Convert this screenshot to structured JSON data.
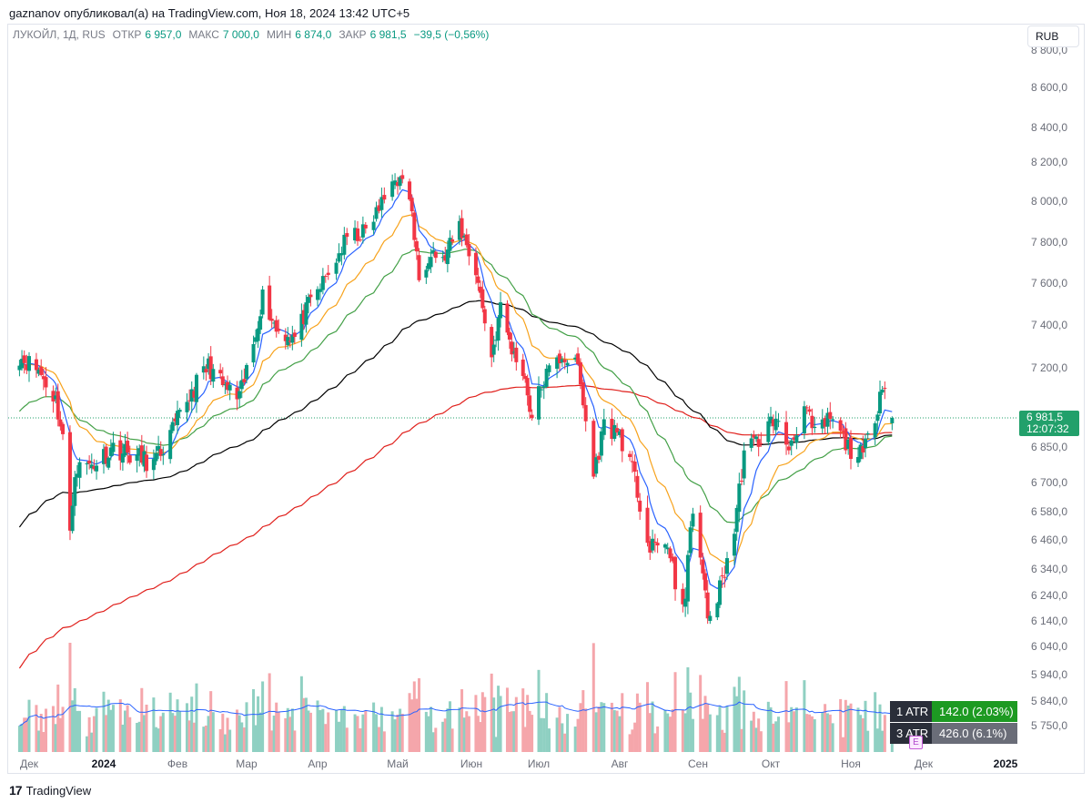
{
  "header": {
    "publish_line": "gaznanov опубликовал(а) на TradingView.com, Ноя 18, 2024 13:42 UTC+5"
  },
  "legend": {
    "symbol": "ЛУКОЙЛ, 1Д, RUS",
    "open_label": "ОТКР",
    "open_value": "6 957,0",
    "high_label": "МАКС",
    "high_value": "7 000,0",
    "low_label": "МИН",
    "low_value": "6 874,0",
    "close_label": "ЗАКР",
    "close_value": "6 981,5",
    "change": "−39,5 (−0,56%)"
  },
  "currency_button": "RUB",
  "price_tag": {
    "price": "6 981,5",
    "countdown": "12:07:32"
  },
  "atr": [
    {
      "label": "1 ATR",
      "value": "142.0 (2.03%)",
      "color": "#1d9a22"
    },
    {
      "label": "3 ATR",
      "value": "426.0 (6.1%)",
      "color": "#6a6d78"
    }
  ],
  "earnings_badge": "E",
  "footer": {
    "brand": "TradingView",
    "logo_glyph": "17"
  },
  "colors": {
    "up": "#089981",
    "down": "#f23645",
    "up_volume": "#8fd0c2",
    "down_volume": "#f5a6ab",
    "ma_blue": "#2962ff",
    "ma_orange": "#f7a21b",
    "ma_green": "#43a047",
    "ma_black": "#000000",
    "ma_red": "#e0201c",
    "volume_ma": "#2962ff"
  },
  "chart_data": {
    "type": "candlestick",
    "symbol": "ЛУКОЙЛ",
    "interval": "1Д",
    "currency": "RUB",
    "y_ticks": [
      8800,
      8600,
      8400,
      8200,
      8000,
      7800,
      7600,
      7400,
      7200,
      6850,
      6700,
      6580,
      6460,
      6340,
      6240,
      6140,
      6040,
      5940,
      5840,
      5750
    ],
    "y_tick_labels": [
      "8 800,0",
      "8 600,0",
      "8 400,0",
      "8 200,0",
      "8 000,0",
      "7 800,0",
      "7 600,0",
      "7 400,0",
      "7 200,0",
      "6 850,0",
      "6 700,0",
      "6 580,0",
      "6 460,0",
      "6 340,0",
      "6 240,0",
      "6 140,0",
      "6 040,0",
      "5 940,0",
      "5 840,0",
      "5 750,0"
    ],
    "x_labels": [
      "Дек",
      "2024",
      "Фев",
      "Мар",
      "Апр",
      "Май",
      "Июн",
      "Июл",
      "Авг",
      "Сен",
      "Окт",
      "Ноя",
      "Дек",
      "2025"
    ],
    "x_label_bold": [
      "2024",
      "2025"
    ],
    "last_price": 6981.5,
    "close_anchors": [
      [
        "2023-11-27",
        7255
      ],
      [
        "2023-12-05",
        7190
      ],
      [
        "2023-12-12",
        7060
      ],
      [
        "2023-12-15",
        6900
      ],
      [
        "2023-12-18",
        6470
      ],
      [
        "2023-12-20",
        6760
      ],
      [
        "2023-12-28",
        6780
      ],
      [
        "2024-01-05",
        6850
      ],
      [
        "2024-01-12",
        6820
      ],
      [
        "2024-01-22",
        6780
      ],
      [
        "2024-01-29",
        6900
      ],
      [
        "2024-02-06",
        7080
      ],
      [
        "2024-02-14",
        7210
      ],
      [
        "2024-02-20",
        7120
      ],
      [
        "2024-02-27",
        7060
      ],
      [
        "2024-03-04",
        7310
      ],
      [
        "2024-03-08",
        7540
      ],
      [
        "2024-03-14",
        7380
      ],
      [
        "2024-03-22",
        7340
      ],
      [
        "2024-03-28",
        7490
      ],
      [
        "2024-04-05",
        7640
      ],
      [
        "2024-04-12",
        7820
      ],
      [
        "2024-04-19",
        7850
      ],
      [
        "2024-04-26",
        8010
      ],
      [
        "2024-04-30",
        8130
      ],
      [
        "2024-05-06",
        8030
      ],
      [
        "2024-05-10",
        7620
      ],
      [
        "2024-05-15",
        7770
      ],
      [
        "2024-05-20",
        7700
      ],
      [
        "2024-05-27",
        7880
      ],
      [
        "2024-06-03",
        7660
      ],
      [
        "2024-06-10",
        7250
      ],
      [
        "2024-06-14",
        7480
      ],
      [
        "2024-06-20",
        7250
      ],
      [
        "2024-06-24",
        7200
      ],
      [
        "2024-06-28",
        6980
      ],
      [
        "2024-07-03",
        7150
      ],
      [
        "2024-07-10",
        7260
      ],
      [
        "2024-07-16",
        7200
      ],
      [
        "2024-07-22",
        6730
      ],
      [
        "2024-07-26",
        6950
      ],
      [
        "2024-08-01",
        6910
      ],
      [
        "2024-08-07",
        6710
      ],
      [
        "2024-08-13",
        6410
      ],
      [
        "2024-08-19",
        6470
      ],
      [
        "2024-08-23",
        6280
      ],
      [
        "2024-08-27",
        6230
      ],
      [
        "2024-08-30",
        6610
      ],
      [
        "2024-09-05",
        6150
      ],
      [
        "2024-09-10",
        6260
      ],
      [
        "2024-09-16",
        6500
      ],
      [
        "2024-09-20",
        6830
      ],
      [
        "2024-09-27",
        6890
      ],
      [
        "2024-10-02",
        6980
      ],
      [
        "2024-10-08",
        6850
      ],
      [
        "2024-10-14",
        7030
      ],
      [
        "2024-10-18",
        6900
      ],
      [
        "2024-10-24",
        6980
      ],
      [
        "2024-10-31",
        6850
      ],
      [
        "2024-11-06",
        6810
      ],
      [
        "2024-11-12",
        7040
      ],
      [
        "2024-11-14",
        7150
      ],
      [
        "2024-11-18",
        6981.5
      ]
    ],
    "volume_ma_level": "flat",
    "moving_averages": [
      "blue",
      "orange",
      "green",
      "black",
      "red"
    ]
  }
}
